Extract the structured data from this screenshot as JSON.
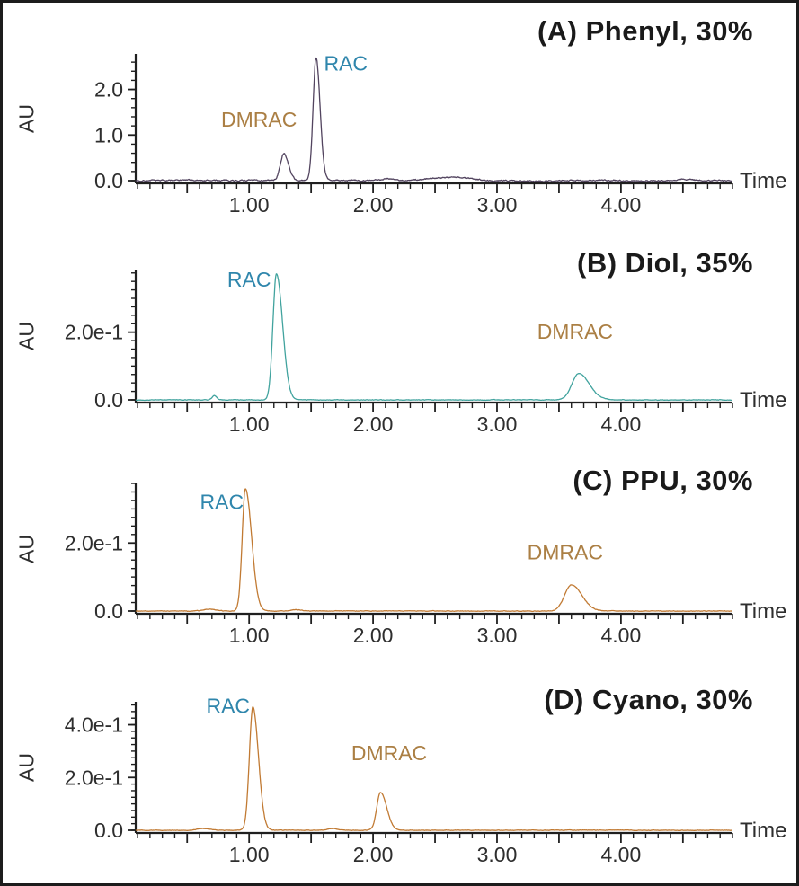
{
  "figure": {
    "border_color": "#1c1c1c",
    "background": "#ffffff"
  },
  "chart_data": [
    {
      "type": "line",
      "panel": "A",
      "title": "(A) Phenyl, 30%",
      "xlabel": "Time",
      "ylabel": "AU",
      "trace_color": "#52445f",
      "xlim": [
        0.085,
        4.9
      ],
      "ylim": [
        0,
        2.78
      ],
      "xticks": [
        {
          "v": 1,
          "label": "1.00"
        },
        {
          "v": 2,
          "label": "2.00"
        },
        {
          "v": 3,
          "label": "3.00"
        },
        {
          "v": 4,
          "label": "4.00"
        }
      ],
      "x_minor_step": 0.1,
      "x_major_step": 0.5,
      "yticks": [
        {
          "v": 0,
          "label": "0.0"
        },
        {
          "v": 1,
          "label": "1.0"
        },
        {
          "v": 2,
          "label": "2.0"
        }
      ],
      "y_minor_step": 0.2,
      "noise_amp": 0.035,
      "peaks": [
        {
          "name": "DMRAC",
          "time": 1.28,
          "height": 0.58,
          "sigma_left": 0.028,
          "sigma_right": 0.038,
          "label": {
            "text": "DMRAC",
            "x": 1.08,
            "y": 1.18,
            "color": "#ab7f44"
          }
        },
        {
          "name": "RAC",
          "time": 1.54,
          "height": 2.7,
          "sigma_left": 0.024,
          "sigma_right": 0.032,
          "label": {
            "text": "RAC",
            "x": 1.78,
            "y": 2.42,
            "color": "#2f86ac"
          }
        }
      ],
      "minor_peaks": [
        {
          "time": 2.12,
          "height": 0.05,
          "sigma": 0.05
        },
        {
          "time": 2.62,
          "height": 0.08,
          "sigma": 0.16
        },
        {
          "time": 4.52,
          "height": 0.035,
          "sigma": 0.06
        }
      ]
    },
    {
      "type": "line",
      "panel": "B",
      "title": "(B) Diol, 35%",
      "xlabel": "Time",
      "ylabel": "AU",
      "trace_color": "#41a39e",
      "xlim": [
        0.085,
        4.9
      ],
      "ylim": [
        0,
        0.385
      ],
      "xticks": [
        {
          "v": 1,
          "label": "1.00"
        },
        {
          "v": 2,
          "label": "2.00"
        },
        {
          "v": 3,
          "label": "3.00"
        },
        {
          "v": 4,
          "label": "4.00"
        }
      ],
      "x_minor_step": 0.1,
      "x_major_step": 0.5,
      "yticks": [
        {
          "v": 0,
          "label": "0.0"
        },
        {
          "v": 0.2,
          "label": "2.0e-1"
        }
      ],
      "y_minor_step": 0.025,
      "noise_amp": 0.002,
      "peaks": [
        {
          "name": "RAC",
          "time": 1.22,
          "height": 0.372,
          "sigma_left": 0.028,
          "sigma_right": 0.05,
          "label": {
            "text": "RAC",
            "x": 1.0,
            "y": 0.335,
            "color": "#2f86ac"
          }
        },
        {
          "name": "DMRAC",
          "time": 3.66,
          "height": 0.078,
          "sigma_left": 0.055,
          "sigma_right": 0.085,
          "label": {
            "text": "DMRAC",
            "x": 3.63,
            "y": 0.18,
            "color": "#ab7f44"
          }
        }
      ],
      "minor_peaks": [
        {
          "time": 0.72,
          "height": 0.013,
          "sigma": 0.018
        }
      ]
    },
    {
      "type": "line",
      "panel": "C",
      "title": "(C) PPU, 30%",
      "xlabel": "Time",
      "ylabel": "AU",
      "trace_color": "#c17a33",
      "xlim": [
        0.085,
        4.9
      ],
      "ylim": [
        0,
        0.375
      ],
      "xticks": [
        {
          "v": 1,
          "label": "1.00"
        },
        {
          "v": 2,
          "label": "2.00"
        },
        {
          "v": 3,
          "label": "3.00"
        },
        {
          "v": 4,
          "label": "4.00"
        }
      ],
      "x_minor_step": 0.1,
      "x_major_step": 0.5,
      "yticks": [
        {
          "v": 0,
          "label": "0.0"
        },
        {
          "v": 0.2,
          "label": "2.0e-1"
        }
      ],
      "y_minor_step": 0.025,
      "noise_amp": 0.002,
      "peaks": [
        {
          "name": "RAC",
          "time": 0.97,
          "height": 0.36,
          "sigma_left": 0.026,
          "sigma_right": 0.05,
          "label": {
            "text": "RAC",
            "x": 0.78,
            "y": 0.3,
            "color": "#2f86ac"
          }
        },
        {
          "name": "DMRAC",
          "time": 3.6,
          "height": 0.077,
          "sigma_left": 0.055,
          "sigma_right": 0.085,
          "label": {
            "text": "DMRAC",
            "x": 3.55,
            "y": 0.152,
            "color": "#ab7f44"
          }
        }
      ],
      "minor_peaks": [
        {
          "time": 0.68,
          "height": 0.006,
          "sigma": 0.05
        },
        {
          "time": 1.38,
          "height": 0.004,
          "sigma": 0.04
        }
      ]
    },
    {
      "type": "line",
      "panel": "D",
      "title": "(D) Cyano, 30%",
      "xlabel": "Time",
      "ylabel": "AU",
      "trace_color": "#c17a33",
      "xlim": [
        0.085,
        4.9
      ],
      "ylim": [
        0,
        0.487
      ],
      "xticks": [
        {
          "v": 1,
          "label": "1.00"
        },
        {
          "v": 2,
          "label": "2.00"
        },
        {
          "v": 3,
          "label": "3.00"
        },
        {
          "v": 4,
          "label": "4.00"
        }
      ],
      "x_minor_step": 0.1,
      "x_major_step": 0.5,
      "yticks": [
        {
          "v": 0,
          "label": "0.0"
        },
        {
          "v": 0.2,
          "label": "2.0e-1"
        },
        {
          "v": 0.4,
          "label": "4.0e-1"
        }
      ],
      "y_minor_step": 0.025,
      "noise_amp": 0.0022,
      "peaks": [
        {
          "name": "RAC",
          "time": 1.03,
          "height": 0.468,
          "sigma_left": 0.028,
          "sigma_right": 0.045,
          "label": {
            "text": "RAC",
            "x": 0.83,
            "y": 0.445,
            "color": "#2f86ac"
          }
        },
        {
          "name": "DMRAC",
          "time": 2.06,
          "height": 0.143,
          "sigma_left": 0.03,
          "sigma_right": 0.05,
          "label": {
            "text": "DMRAC",
            "x": 2.13,
            "y": 0.265,
            "color": "#ab7f44"
          }
        }
      ],
      "minor_peaks": [
        {
          "time": 0.63,
          "height": 0.007,
          "sigma": 0.05
        },
        {
          "time": 1.67,
          "height": 0.006,
          "sigma": 0.04
        }
      ]
    }
  ]
}
